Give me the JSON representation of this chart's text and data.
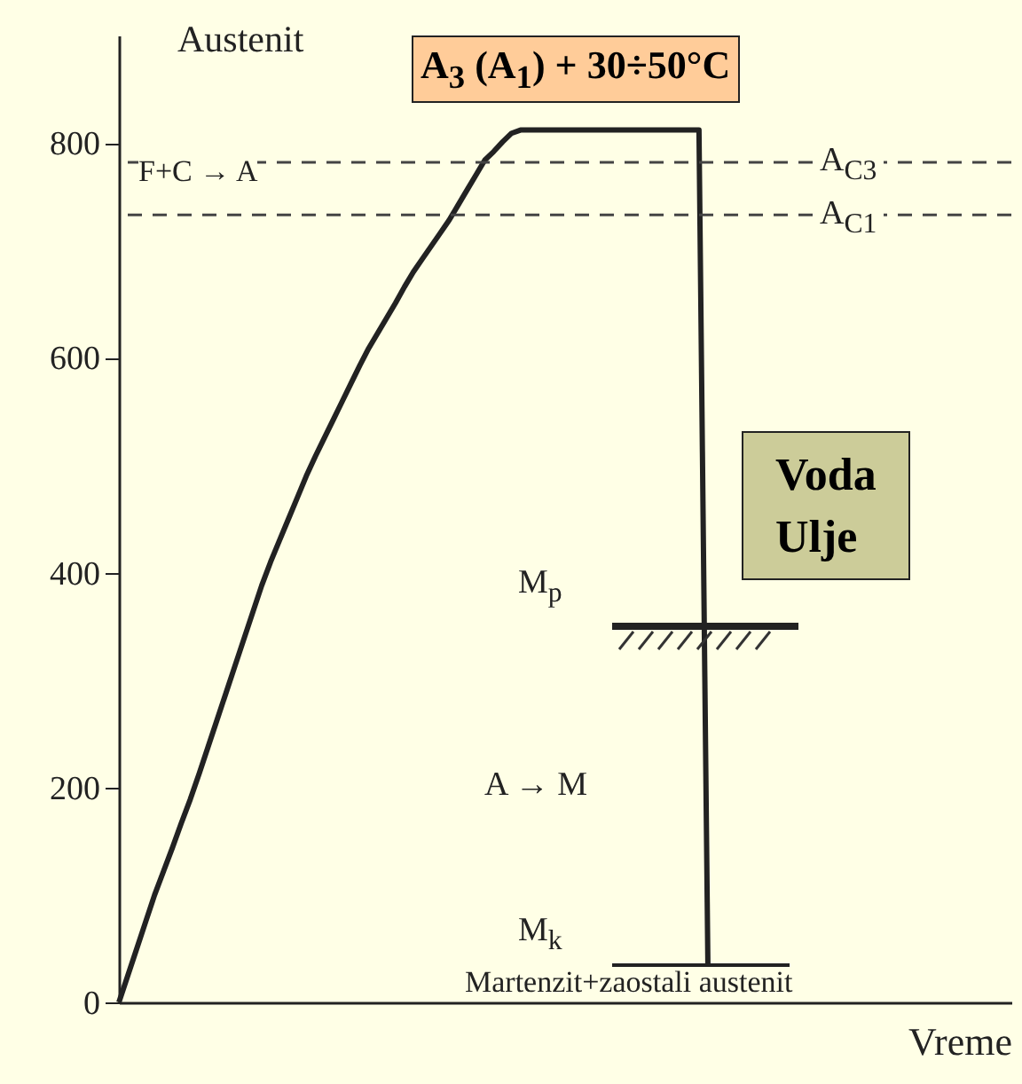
{
  "chart_data": {
    "type": "line",
    "xlabel": "Vreme",
    "ylim": [
      0,
      900
    ],
    "yticks": [
      0,
      200,
      400,
      600,
      800
    ],
    "tick_labels": "y",
    "line_style": "solid",
    "categories": [
      null,
      null,
      null,
      null,
      null,
      null,
      null,
      null,
      null,
      null,
      null,
      null,
      null,
      null,
      null,
      null,
      null,
      null,
      null,
      null,
      null,
      null,
      null,
      null,
      null,
      null,
      null,
      null,
      null,
      null,
      null,
      null,
      null,
      null,
      null,
      null,
      null,
      null,
      null,
      null,
      null,
      null,
      null,
      null,
      null,
      null,
      null,
      null,
      null,
      null,
      null,
      null,
      null,
      null,
      null,
      null,
      null,
      null,
      null,
      null,
      null,
      null,
      null,
      null,
      null,
      null,
      null,
      null,
      null,
      null,
      null,
      null,
      null,
      null,
      null,
      null,
      null,
      null,
      null,
      null,
      null,
      null,
      null,
      null,
      null,
      null,
      null,
      null,
      null,
      null,
      null,
      null,
      null,
      null,
      null,
      null,
      null,
      null,
      null,
      null,
      null
    ],
    "series": [
      {
        "color": "#222222",
        "values": [
          0,
          25,
          50,
          75,
          100,
          122,
          144,
          167,
          189,
          213,
          238,
          263,
          288,
          313,
          338,
          363,
          388,
          410,
          430,
          450,
          470,
          490,
          508,
          525,
          542,
          559,
          576,
          593,
          609,
          623,
          637,
          651,
          666,
          680,
          692,
          704,
          716,
          728,
          742,
          756,
          770,
          784,
          792,
          801,
          809,
          812,
          812,
          812,
          812,
          812,
          812,
          812,
          812,
          812,
          812,
          812,
          812,
          812,
          812,
          812,
          812,
          812,
          812,
          812,
          812,
          812,
          33,
          null,
          null,
          null,
          null,
          null,
          null,
          null,
          null,
          null,
          null,
          null,
          null,
          null,
          null,
          null,
          null,
          null,
          null,
          null,
          null,
          null,
          null,
          null,
          null,
          null,
          null,
          null,
          null,
          null,
          null,
          null,
          null,
          null,
          null
        ]
      }
    ],
    "ref_lines": [
      {
        "axis": "y",
        "value": 782,
        "label": "A$_{C3}$",
        "line_style": "dashed",
        "color": "#444444"
      },
      {
        "axis": "y",
        "value": 733,
        "label": "A$_{C1}$",
        "line_style": "dashed",
        "color": "#444444"
      },
      {
        "axis": "y",
        "value": 350,
        "label": "M$_{p}$",
        "line_style": "solid",
        "color": "#222222"
      },
      {
        "axis": "y",
        "value": 33,
        "label": "M$_{k}$",
        "line_style": "solid",
        "color": "#222222"
      }
    ],
    "annotations": [
      "Austenit",
      "A$_{3}$ (A$_{1}$)  +  30÷50°C",
      "F+C → A",
      "Voda",
      "Ulje",
      "A → M",
      "Martenzit+zaostali austenit"
    ]
  }
}
